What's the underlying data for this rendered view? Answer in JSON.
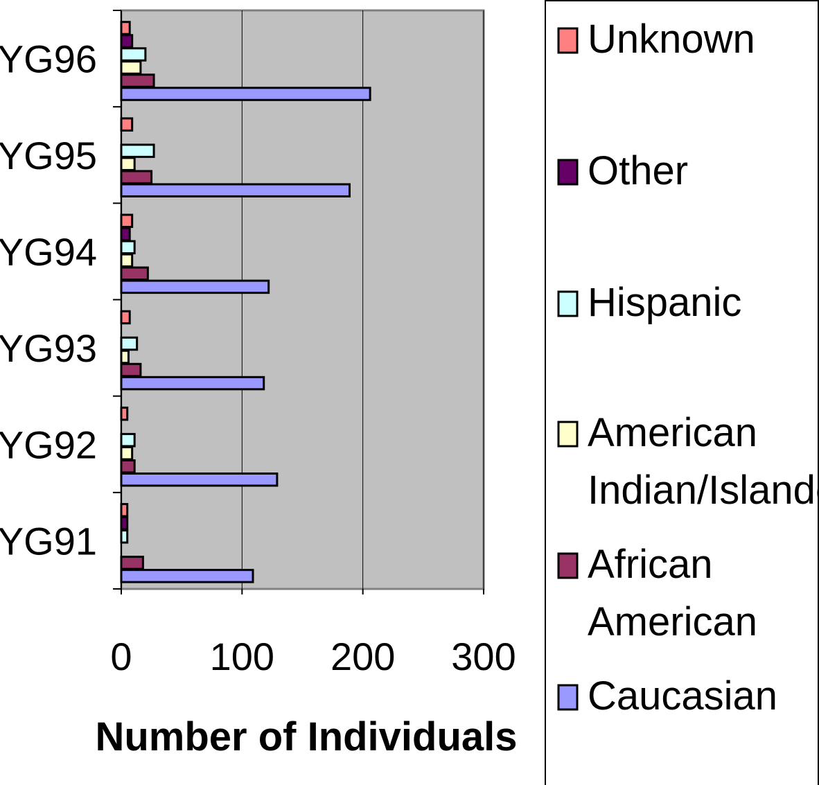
{
  "chart_data": {
    "type": "bar",
    "orientation": "horizontal",
    "categories": [
      "YG91",
      "YG92",
      "YG93",
      "YG94",
      "YG95",
      "YG96"
    ],
    "series": [
      {
        "name": "Caucasian",
        "color": "#9999ff",
        "values": [
          109,
          129,
          118,
          122,
          189,
          206
        ]
      },
      {
        "name": "African American",
        "color": "#993366",
        "values": [
          18,
          11,
          16,
          22,
          25,
          27
        ]
      },
      {
        "name": "American Indian/Islander",
        "color": "#ffffcc",
        "values": [
          0,
          9,
          6,
          9,
          11,
          16
        ]
      },
      {
        "name": "Hispanic",
        "color": "#ccffff",
        "values": [
          5,
          11,
          13,
          11,
          27,
          20
        ]
      },
      {
        "name": "Other",
        "color": "#660066",
        "values": [
          5,
          0,
          0,
          7,
          0,
          9
        ]
      },
      {
        "name": "Unknown",
        "color": "#ff8080",
        "values": [
          5,
          5,
          7,
          9,
          9,
          7
        ]
      }
    ],
    "xlabel": "Number of Individuals",
    "ylabel": "",
    "xlim": [
      0,
      300
    ],
    "xticks": [
      0,
      100,
      200,
      300
    ],
    "grid": true,
    "plot_background": "#c0c0c0",
    "legend_position": "right",
    "legend_order": [
      "Unknown",
      "Other",
      "Hispanic",
      "American Indian/Islander",
      "African American",
      "Caucasian"
    ],
    "legend_lines": {
      "Unknown": [
        "Unknown"
      ],
      "Other": [
        "Other"
      ],
      "Hispanic": [
        "Hispanic"
      ],
      "American Indian/Islander": [
        "American",
        "Indian/Islander"
      ],
      "African American": [
        "African",
        "American"
      ],
      "Caucasian": [
        "Caucasian"
      ]
    }
  }
}
